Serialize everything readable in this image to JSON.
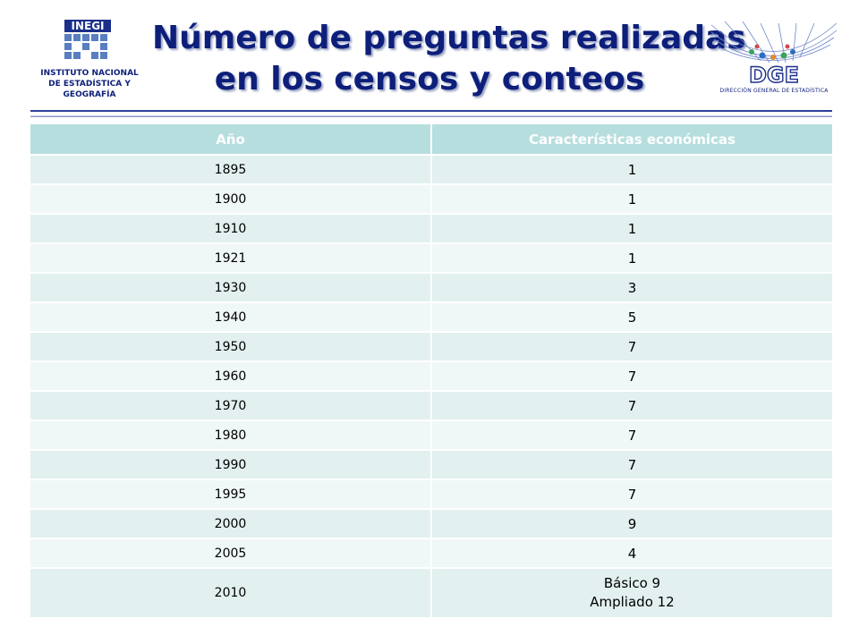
{
  "header": {
    "title_line1": "Número de preguntas realizadas",
    "title_line2": "en los censos y conteos",
    "left_logo": {
      "text": "INEGI",
      "caption_line1": "INSTITUTO NACIONAL",
      "caption_line2": "DE ESTADÍSTICA Y GEOGRAFÍA"
    },
    "right_logo": {
      "text": "DGE",
      "caption": "DIRECCIÓN GENERAL DE ESTADÍSTICA"
    }
  },
  "table": {
    "columns": [
      "Año",
      "Características económicas"
    ],
    "rows": [
      {
        "year": "1895",
        "value": "1"
      },
      {
        "year": "1900",
        "value": "1"
      },
      {
        "year": "1910",
        "value": "1"
      },
      {
        "year": "1921",
        "value": "1"
      },
      {
        "year": "1930",
        "value": "3"
      },
      {
        "year": "1940",
        "value": "5"
      },
      {
        "year": "1950",
        "value": "7"
      },
      {
        "year": "1960",
        "value": "7"
      },
      {
        "year": "1970",
        "value": "7"
      },
      {
        "year": "1980",
        "value": "7"
      },
      {
        "year": "1990",
        "value": "7"
      },
      {
        "year": "1995",
        "value": "7"
      },
      {
        "year": "2000",
        "value": "9"
      },
      {
        "year": "2005",
        "value": "4"
      }
    ],
    "last_row": {
      "year": "2010",
      "value_line1": "Básico 9",
      "value_line2": "Ampliado 12"
    }
  },
  "colors": {
    "title": "#0d1f7a",
    "header_bg": "#b7dede",
    "row_dark": "#e2f0f0",
    "row_light": "#f0f7f7"
  }
}
